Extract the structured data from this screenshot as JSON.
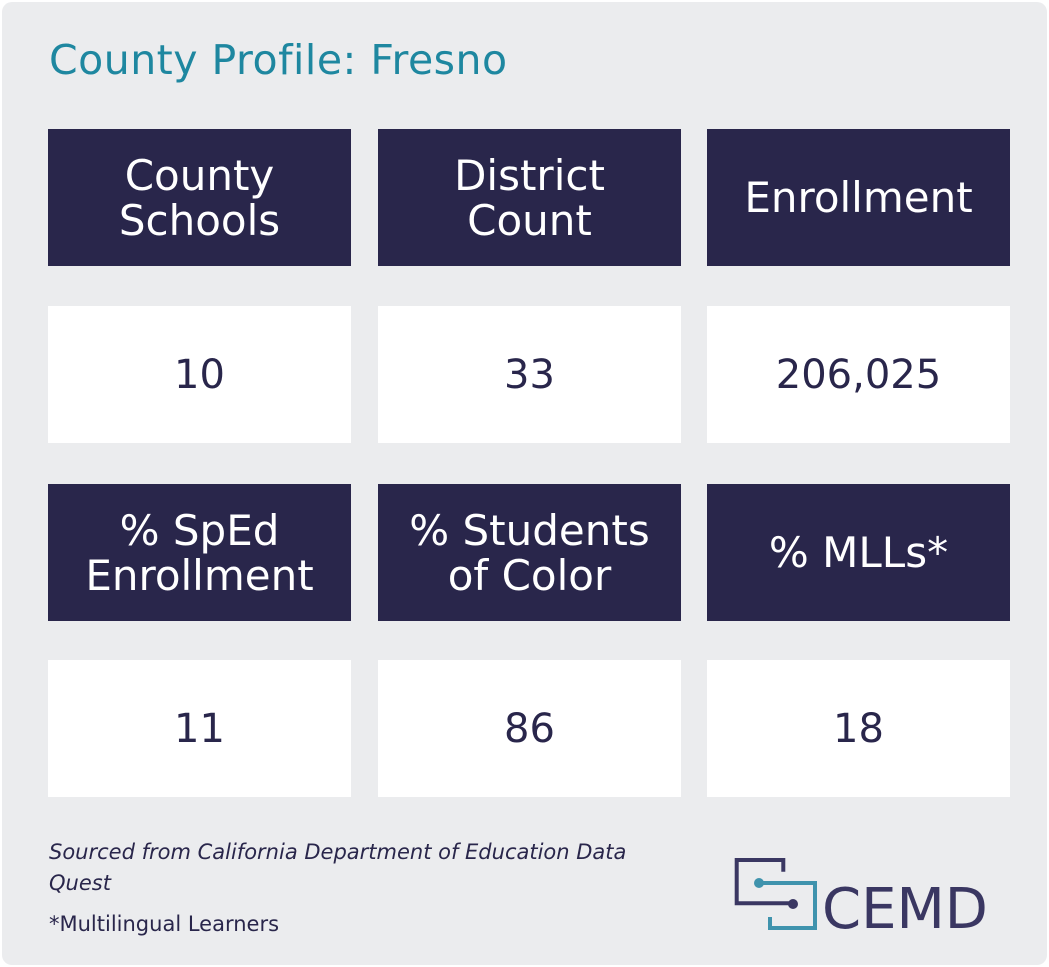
{
  "title": "County Profile: Fresno",
  "headers": [
    "County\nSchools",
    "District\nCount",
    "Enrollment",
    "% SpEd\nEnrollment",
    "% Students\nof Color",
    "% MLLs*"
  ],
  "values": [
    "10",
    "33",
    "206,025",
    "11",
    "86",
    "18"
  ],
  "source": "Sourced from California Department of Education Data Quest",
  "footnote": "*Multilingual Learners",
  "logo": {
    "text": "CEMD"
  },
  "colors": {
    "title": "#1e87a0",
    "header_bg": "#29264b",
    "value_text": "#29264b",
    "background": "#ebecee",
    "logo_teal": "#3f93ad",
    "logo_dark": "#3a3762"
  }
}
